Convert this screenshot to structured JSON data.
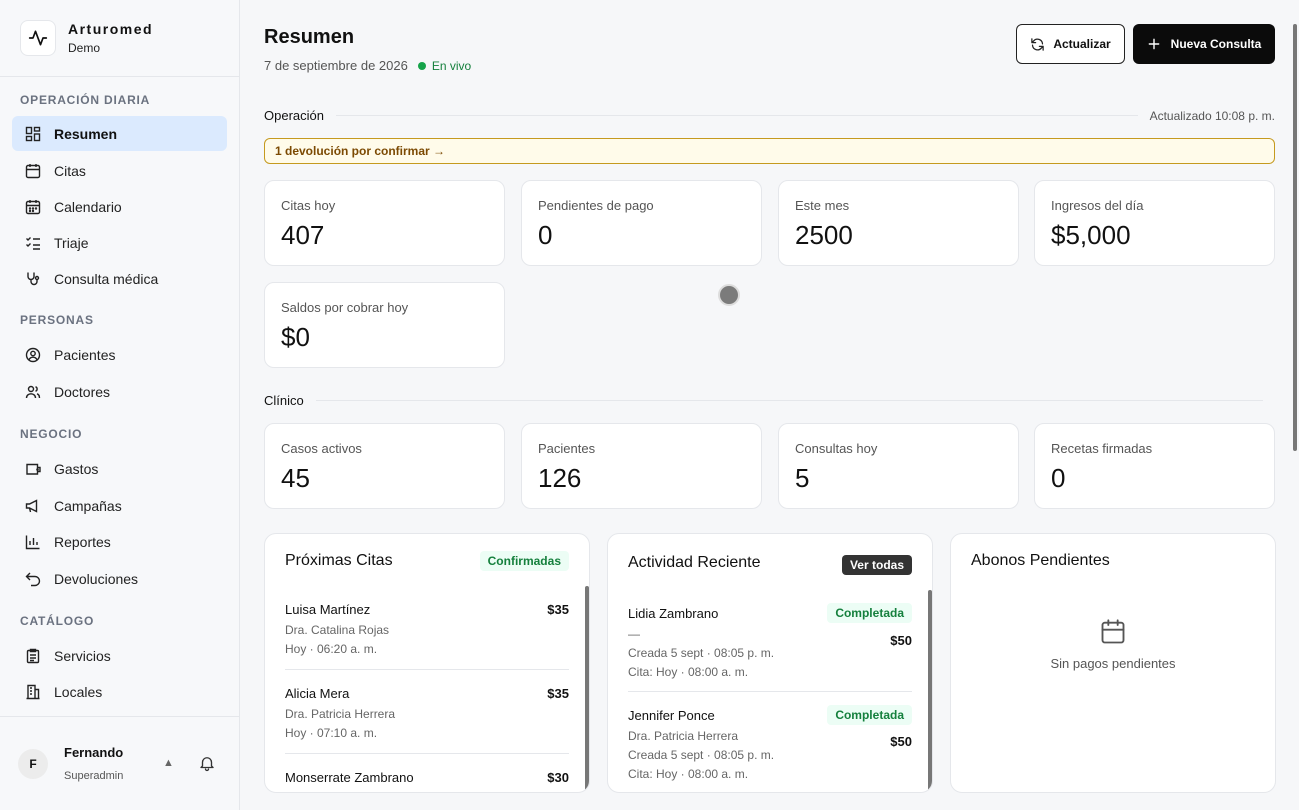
{
  "brand": {
    "name": "Arturomed",
    "sub": "Demo"
  },
  "sidebar": {
    "sections": [
      {
        "title": "OPERACIÓN DIARIA",
        "items": [
          {
            "label": "Resumen",
            "icon": "dashboard-icon",
            "active": true
          },
          {
            "label": "Citas",
            "icon": "calendar-icon"
          },
          {
            "label": "Calendario",
            "icon": "calendar-grid-icon"
          },
          {
            "label": "Triaje",
            "icon": "checklist-icon"
          },
          {
            "label": "Consulta médica",
            "icon": "stethoscope-icon"
          }
        ]
      },
      {
        "title": "PERSONAS",
        "items": [
          {
            "label": "Pacientes",
            "icon": "user-circle-icon"
          },
          {
            "label": "Doctores",
            "icon": "users-icon"
          }
        ]
      },
      {
        "title": "NEGOCIO",
        "items": [
          {
            "label": "Gastos",
            "icon": "wallet-icon"
          },
          {
            "label": "Campañas",
            "icon": "megaphone-icon"
          },
          {
            "label": "Reportes",
            "icon": "bar-chart-icon"
          },
          {
            "label": "Devoluciones",
            "icon": "undo-icon"
          }
        ]
      },
      {
        "title": "CATÁLOGO",
        "items": [
          {
            "label": "Servicios",
            "icon": "clipboard-icon"
          },
          {
            "label": "Locales",
            "icon": "building-icon"
          }
        ]
      }
    ]
  },
  "user": {
    "initial": "F",
    "name": "Fernando",
    "role": "Superadmin",
    "caret": "▲"
  },
  "header": {
    "title": "Resumen",
    "date": "7 de septiembre de 2026",
    "live": "En vivo",
    "refresh_label": "Actualizar",
    "new_label": "Nueva Consulta"
  },
  "operacion": {
    "title": "Operación",
    "updated": "Actualizado 10:08 p. m.",
    "alert": "1 devolución por confirmar →",
    "stats": [
      {
        "label": "Citas hoy",
        "value": "407"
      },
      {
        "label": "Pendientes de pago",
        "value": "0"
      },
      {
        "label": "Este mes",
        "value": "2500"
      },
      {
        "label": "Ingresos del día",
        "value": "$5,000"
      },
      {
        "label": "Saldos por cobrar hoy",
        "value": "$0"
      }
    ]
  },
  "clinico": {
    "title": "Clínico",
    "stats": [
      {
        "label": "Casos activos",
        "value": "45"
      },
      {
        "label": "Pacientes",
        "value": "126"
      },
      {
        "label": "Consultas hoy",
        "value": "5"
      },
      {
        "label": "Recetas firmadas",
        "value": "0"
      }
    ]
  },
  "proximas": {
    "title": "Próximas Citas",
    "badge": "Confirmadas",
    "rows": [
      {
        "name": "Luisa Martínez",
        "doctor": "Dra. Catalina Rojas",
        "time": "Hoy · 06:20 a. m.",
        "amount": "$35"
      },
      {
        "name": "Alicia Mera",
        "doctor": "Dra. Patricia Herrera",
        "time": "Hoy · 07:10 a. m.",
        "amount": "$35"
      },
      {
        "name": "Monserrate Zambrano",
        "doctor": "",
        "time": "",
        "amount": "$30"
      }
    ]
  },
  "actividad": {
    "title": "Actividad Reciente",
    "badge": "Ver todas",
    "rows": [
      {
        "name": "Lidia Zambrano",
        "doctor": "—",
        "created": "Creada 5 sept · 08:05 p. m.",
        "cita": "Cita: Hoy · 08:00 a. m.",
        "status": "Completada",
        "amount": "$50"
      },
      {
        "name": "Jennifer Ponce",
        "doctor": "Dra. Patricia Herrera",
        "created": "Creada 5 sept · 08:05 p. m.",
        "cita": "Cita: Hoy · 08:00 a. m.",
        "status": "Completada",
        "amount": "$50"
      }
    ]
  },
  "abonos": {
    "title": "Abonos Pendientes",
    "empty": "Sin pagos pendientes"
  }
}
